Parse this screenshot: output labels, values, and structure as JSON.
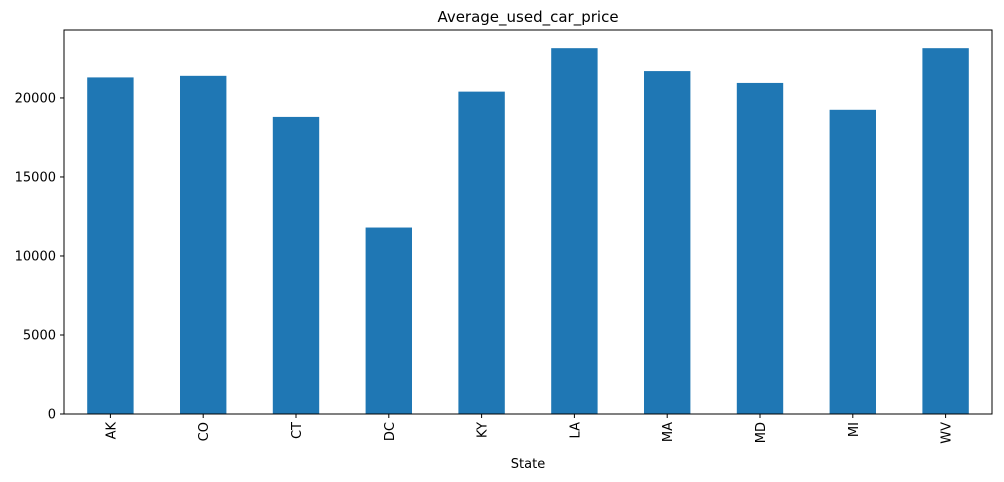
{
  "chart_data": {
    "type": "bar",
    "title": "Average_used_car_price",
    "xlabel": "State",
    "ylabel": "",
    "categories": [
      "AK",
      "CO",
      "CT",
      "DC",
      "KY",
      "LA",
      "MA",
      "MD",
      "MI",
      "WV"
    ],
    "values": [
      21300,
      21400,
      18800,
      11800,
      20400,
      23150,
      21700,
      20950,
      19250,
      23150
    ],
    "yticks": [
      0,
      5000,
      10000,
      15000,
      20000
    ],
    "ylim": [
      0,
      24300
    ],
    "bar_color": "#1f77b4",
    "grid": false,
    "legend": "none"
  }
}
